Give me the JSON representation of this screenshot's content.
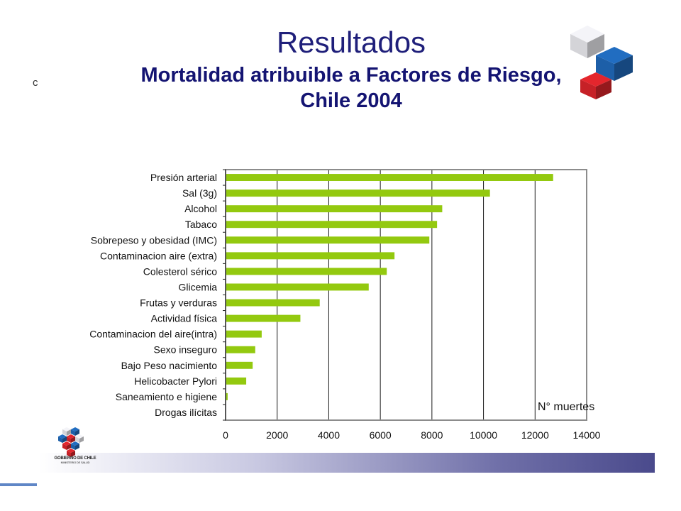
{
  "slide": {
    "title": "Resultados",
    "subtitle_line1": "Mortalidad atribuible a Factores de Riesgo,",
    "subtitle_line2": "Chile 2004",
    "stray_mark": "c"
  },
  "logo": {
    "gov_line1": "GOBIERNO DE CHILE",
    "gov_line2": "MINISTERIO DE SALUD",
    "cube_colors": [
      "#d4d4d8",
      "#1d5fa8",
      "#c62127"
    ]
  },
  "chart_data": {
    "type": "bar",
    "orientation": "horizontal",
    "title": "",
    "xlabel": "",
    "ylabel": "",
    "annotation": "N° muertes",
    "xlim": [
      0,
      14000
    ],
    "xticks": [
      0,
      2000,
      4000,
      6000,
      8000,
      10000,
      12000,
      14000
    ],
    "grid": "vertical",
    "bar_color": "#93c90f",
    "categories": [
      "Presión  arterial",
      "Sal (3g)",
      "Alcohol",
      "Tabaco",
      "Sobrepeso y obesidad (IMC)",
      "Contaminacion aire (extra)",
      "Colesterol sérico",
      "Glicemia",
      "Frutas y verduras",
      "Actividad física",
      "Contaminacion del aire(intra)",
      "Sexo inseguro",
      "Bajo Peso nacimiento",
      "Helicobacter Pylori",
      "Saneamiento e higiene",
      "Drogas ilícitas"
    ],
    "values": [
      12700,
      10250,
      8400,
      8200,
      7900,
      6550,
      6250,
      5550,
      3650,
      2900,
      1400,
      1150,
      1050,
      800,
      80,
      0
    ]
  }
}
